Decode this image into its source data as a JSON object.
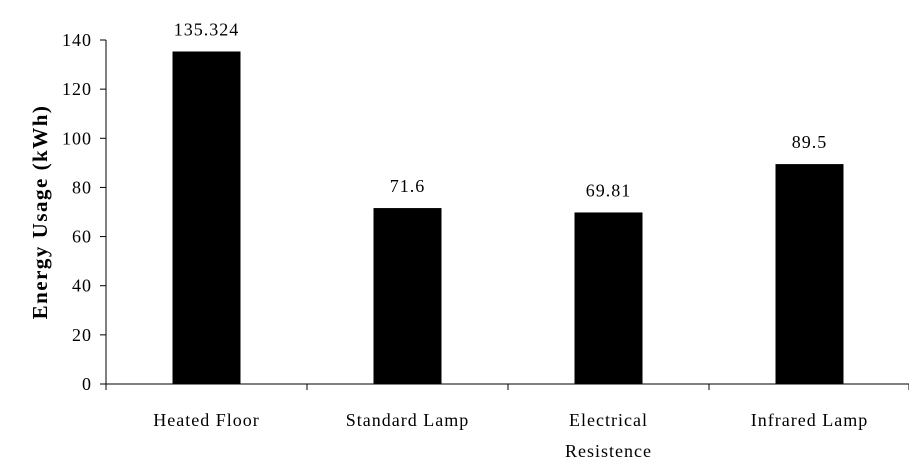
{
  "chart_data": {
    "type": "bar",
    "title": "",
    "xlabel": "",
    "ylabel": "Energy Usage (kWh)",
    "ylim": [
      0,
      140
    ],
    "yticks": [
      0,
      20,
      40,
      60,
      80,
      100,
      120,
      140
    ],
    "categories": [
      [
        "Heated Floor"
      ],
      [
        "Standard Lamp"
      ],
      [
        "Electrical",
        "Resistence"
      ],
      [
        "Infrared Lamp"
      ]
    ],
    "values": [
      135.324,
      71.6,
      69.81,
      89.5
    ],
    "data_labels": [
      "135.324",
      "71.6",
      "69.81",
      "89.5"
    ],
    "bar_color": "#000000",
    "grid": false,
    "legend": "none"
  }
}
